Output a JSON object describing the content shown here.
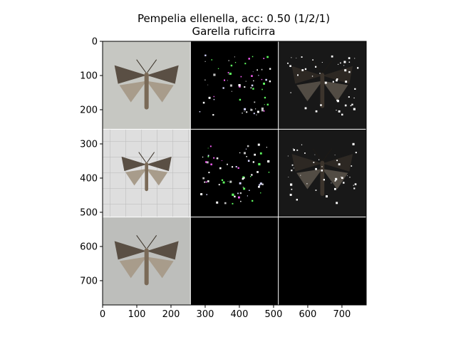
{
  "figure": {
    "title_line1": "Pempelia ellenella, acc: 0.50 (1/2/1)",
    "title_line2": "Garella ruficirra"
  },
  "chart_data": {
    "type": "image-grid",
    "title": "Pempelia ellenella, acc: 0.50 (1/2/1)",
    "subtitle": "Garella ruficirra",
    "xlabel": "",
    "ylabel": "",
    "xlim": [
      0,
      771
    ],
    "ylim": [
      771,
      0
    ],
    "x_ticks": [
      0,
      100,
      200,
      300,
      400,
      500,
      600,
      700
    ],
    "y_ticks": [
      0,
      100,
      200,
      300,
      400,
      500,
      600,
      700
    ],
    "grid": false,
    "cell_size": 257,
    "rows": 3,
    "cols": 3,
    "cells": [
      {
        "row": 0,
        "col": 0,
        "kind": "moth-photo",
        "bg": "#c6c7c2"
      },
      {
        "row": 0,
        "col": 1,
        "kind": "sparse-saliency",
        "bg": "#000000"
      },
      {
        "row": 0,
        "col": 2,
        "kind": "masked-dark",
        "bg": "#2c2c2c"
      },
      {
        "row": 1,
        "col": 0,
        "kind": "moth-photo-grid",
        "bg": "#dcdcdc"
      },
      {
        "row": 1,
        "col": 1,
        "kind": "sparse-saliency",
        "bg": "#000000"
      },
      {
        "row": 1,
        "col": 2,
        "kind": "masked-dark",
        "bg": "#2c2c2c"
      },
      {
        "row": 2,
        "col": 0,
        "kind": "moth-photo",
        "bg": "#bdbebb"
      },
      {
        "row": 2,
        "col": 1,
        "kind": "empty",
        "bg": "#000000"
      },
      {
        "row": 2,
        "col": 2,
        "kind": "empty",
        "bg": "#000000"
      }
    ]
  },
  "colors": {
    "separator": "#ffffff",
    "moth_wing_dark": "#5a4f44",
    "moth_wing_light": "#a89c8b",
    "moth_body": "#7a6a57"
  }
}
